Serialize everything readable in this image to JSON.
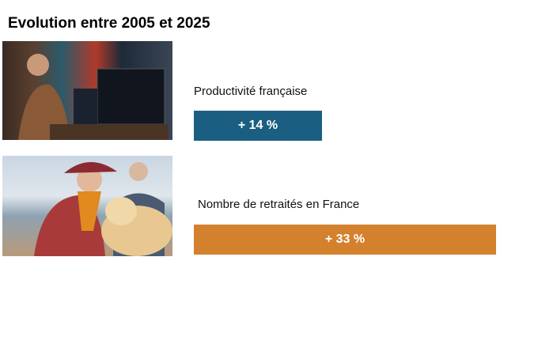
{
  "title": "Evolution entre 2005 et 2025",
  "chart_data": {
    "type": "bar",
    "orientation": "horizontal",
    "categories": [
      "Productivité française",
      "Nombre de retraités en France"
    ],
    "values": [
      14,
      33
    ],
    "data_labels": [
      "+ 14 %",
      "+ 33 %"
    ],
    "colors": [
      "#1a5f82",
      "#d4812e"
    ],
    "unit": "%",
    "grid": false
  },
  "images": [
    {
      "icon": "photo-woman-at-computer"
    },
    {
      "icon": "photo-elderly-couple-with-dog"
    }
  ]
}
